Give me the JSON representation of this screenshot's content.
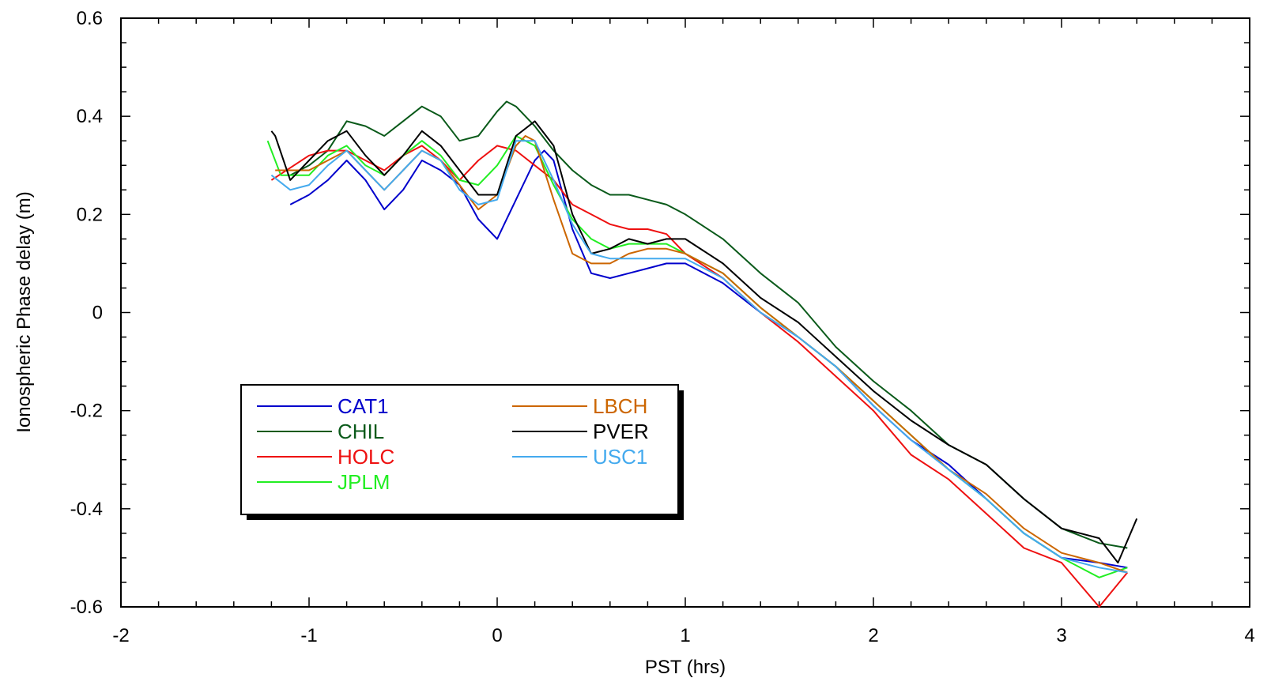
{
  "chart_data": {
    "type": "line",
    "title": "",
    "xlabel": "PST (hrs)",
    "ylabel": "Ionospheric Phase delay (m)",
    "xlim": [
      -2,
      4
    ],
    "ylim": [
      -0.6,
      0.6
    ],
    "x_ticks": [
      -2,
      -1,
      0,
      1,
      2,
      3,
      4
    ],
    "x_tick_labels": [
      "-2",
      "-1",
      "0",
      "1",
      "2",
      "3",
      "4"
    ],
    "y_ticks": [
      -0.6,
      -0.4,
      -0.2,
      0,
      0.2,
      0.4,
      0.6
    ],
    "y_tick_labels": [
      "-0.6",
      "-0.4",
      "-0.2",
      "0",
      "0.2",
      "0.4",
      "0.6"
    ],
    "grid": false,
    "legend": {
      "placement": "lower-left",
      "columns": 2
    },
    "series": [
      {
        "name": "CAT1",
        "color": "#0000cc",
        "x": [
          -1.1,
          -1.0,
          -0.9,
          -0.8,
          -0.7,
          -0.6,
          -0.5,
          -0.4,
          -0.3,
          -0.2,
          -0.1,
          0.0,
          0.1,
          0.2,
          0.25,
          0.3,
          0.4,
          0.5,
          0.6,
          0.7,
          0.8,
          0.9,
          1.0,
          1.2,
          1.4,
          1.6,
          1.8,
          2.0,
          2.2,
          2.4,
          2.6,
          2.8,
          3.0,
          3.2,
          3.35
        ],
        "y": [
          0.22,
          0.24,
          0.27,
          0.31,
          0.27,
          0.21,
          0.25,
          0.31,
          0.29,
          0.26,
          0.19,
          0.15,
          0.23,
          0.31,
          0.33,
          0.31,
          0.17,
          0.08,
          0.07,
          0.08,
          0.09,
          0.1,
          0.1,
          0.06,
          0.0,
          -0.05,
          -0.11,
          -0.19,
          -0.26,
          -0.31,
          -0.38,
          -0.45,
          -0.5,
          -0.51,
          -0.52
        ]
      },
      {
        "name": "CHIL",
        "color": "#0a5a1a",
        "x": [
          -1.1,
          -1.0,
          -0.9,
          -0.8,
          -0.7,
          -0.6,
          -0.5,
          -0.4,
          -0.3,
          -0.2,
          -0.1,
          0.0,
          0.05,
          0.1,
          0.2,
          0.3,
          0.4,
          0.5,
          0.6,
          0.7,
          0.8,
          0.9,
          1.0,
          1.2,
          1.4,
          1.6,
          1.8,
          2.0,
          2.2,
          2.4,
          2.6,
          2.8,
          3.0,
          3.2,
          3.35
        ],
        "y": [
          0.28,
          0.3,
          0.33,
          0.39,
          0.38,
          0.36,
          0.39,
          0.42,
          0.4,
          0.35,
          0.36,
          0.41,
          0.43,
          0.42,
          0.38,
          0.33,
          0.29,
          0.26,
          0.24,
          0.24,
          0.23,
          0.22,
          0.2,
          0.15,
          0.08,
          0.02,
          -0.07,
          -0.14,
          -0.2,
          -0.27,
          -0.31,
          -0.38,
          -0.44,
          -0.47,
          -0.48
        ]
      },
      {
        "name": "HOLC",
        "color": "#ee1111",
        "x": [
          -1.2,
          -1.0,
          -0.9,
          -0.8,
          -0.7,
          -0.6,
          -0.5,
          -0.4,
          -0.3,
          -0.2,
          -0.1,
          0.0,
          0.1,
          0.2,
          0.3,
          0.4,
          0.5,
          0.6,
          0.7,
          0.8,
          0.9,
          1.0,
          1.2,
          1.4,
          1.6,
          1.8,
          2.0,
          2.2,
          2.4,
          2.6,
          2.8,
          3.0,
          3.2,
          3.35
        ],
        "y": [
          0.27,
          0.32,
          0.33,
          0.33,
          0.31,
          0.29,
          0.32,
          0.34,
          0.31,
          0.27,
          0.31,
          0.34,
          0.33,
          0.3,
          0.27,
          0.22,
          0.2,
          0.18,
          0.17,
          0.17,
          0.16,
          0.12,
          0.07,
          0.0,
          -0.06,
          -0.13,
          -0.2,
          -0.29,
          -0.34,
          -0.41,
          -0.48,
          -0.51,
          -0.6,
          -0.53
        ]
      },
      {
        "name": "JPLM",
        "color": "#22ee22",
        "x": [
          -1.22,
          -1.15,
          -1.0,
          -0.9,
          -0.8,
          -0.7,
          -0.6,
          -0.5,
          -0.4,
          -0.3,
          -0.2,
          -0.1,
          0.0,
          0.1,
          0.2,
          0.3,
          0.4,
          0.5,
          0.6,
          0.7,
          0.8,
          0.9,
          1.0,
          1.2,
          1.4,
          1.6,
          1.8,
          2.0,
          2.2,
          2.4,
          2.6,
          2.8,
          3.0,
          3.2,
          3.35
        ],
        "y": [
          0.35,
          0.28,
          0.28,
          0.32,
          0.34,
          0.3,
          0.28,
          0.32,
          0.35,
          0.32,
          0.27,
          0.26,
          0.3,
          0.36,
          0.34,
          0.26,
          0.19,
          0.15,
          0.13,
          0.14,
          0.14,
          0.14,
          0.12,
          0.08,
          0.01,
          -0.05,
          -0.11,
          -0.18,
          -0.25,
          -0.32,
          -0.38,
          -0.45,
          -0.5,
          -0.54,
          -0.52
        ]
      },
      {
        "name": "LBCH",
        "color": "#cc6600",
        "x": [
          -1.18,
          -1.0,
          -0.9,
          -0.8,
          -0.7,
          -0.6,
          -0.5,
          -0.4,
          -0.3,
          -0.2,
          -0.1,
          0.0,
          0.1,
          0.15,
          0.2,
          0.3,
          0.4,
          0.5,
          0.6,
          0.7,
          0.8,
          0.9,
          1.0,
          1.2,
          1.4,
          1.6,
          1.8,
          2.0,
          2.2,
          2.4,
          2.6,
          2.8,
          3.0,
          3.2,
          3.35
        ],
        "y": [
          0.29,
          0.29,
          0.31,
          0.33,
          0.29,
          0.25,
          0.29,
          0.33,
          0.31,
          0.26,
          0.21,
          0.24,
          0.34,
          0.36,
          0.35,
          0.23,
          0.12,
          0.1,
          0.1,
          0.12,
          0.13,
          0.13,
          0.12,
          0.08,
          0.01,
          -0.05,
          -0.11,
          -0.18,
          -0.25,
          -0.32,
          -0.37,
          -0.44,
          -0.49,
          -0.51,
          -0.53
        ]
      },
      {
        "name": "PVER",
        "color": "#000000",
        "x": [
          -1.2,
          -1.18,
          -1.1,
          -1.0,
          -0.9,
          -0.8,
          -0.7,
          -0.6,
          -0.5,
          -0.4,
          -0.3,
          -0.2,
          -0.1,
          0.0,
          0.1,
          0.2,
          0.3,
          0.4,
          0.5,
          0.6,
          0.7,
          0.8,
          0.9,
          1.0,
          1.2,
          1.4,
          1.6,
          1.8,
          2.0,
          2.2,
          2.4,
          2.6,
          2.8,
          3.0,
          3.2,
          3.3,
          3.4
        ],
        "y": [
          0.37,
          0.36,
          0.27,
          0.31,
          0.35,
          0.37,
          0.32,
          0.28,
          0.32,
          0.37,
          0.34,
          0.29,
          0.24,
          0.24,
          0.36,
          0.39,
          0.34,
          0.2,
          0.12,
          0.13,
          0.15,
          0.14,
          0.15,
          0.15,
          0.1,
          0.03,
          -0.02,
          -0.09,
          -0.16,
          -0.22,
          -0.27,
          -0.31,
          -0.38,
          -0.44,
          -0.46,
          -0.51,
          -0.42
        ]
      },
      {
        "name": "USC1",
        "color": "#44aaee",
        "x": [
          -1.2,
          -1.1,
          -1.0,
          -0.9,
          -0.8,
          -0.7,
          -0.6,
          -0.5,
          -0.4,
          -0.3,
          -0.2,
          -0.1,
          0.0,
          0.1,
          0.2,
          0.3,
          0.4,
          0.5,
          0.6,
          0.7,
          0.8,
          0.9,
          1.0,
          1.2,
          1.4,
          1.6,
          1.8,
          2.0,
          2.2,
          2.4,
          2.6,
          2.8,
          3.0,
          3.2,
          3.35
        ],
        "y": [
          0.28,
          0.25,
          0.26,
          0.3,
          0.33,
          0.29,
          0.25,
          0.29,
          0.33,
          0.31,
          0.25,
          0.22,
          0.23,
          0.35,
          0.35,
          0.27,
          0.18,
          0.12,
          0.11,
          0.11,
          0.11,
          0.11,
          0.11,
          0.07,
          0.0,
          -0.05,
          -0.11,
          -0.19,
          -0.26,
          -0.32,
          -0.38,
          -0.45,
          -0.5,
          -0.52,
          -0.53
        ]
      }
    ]
  }
}
